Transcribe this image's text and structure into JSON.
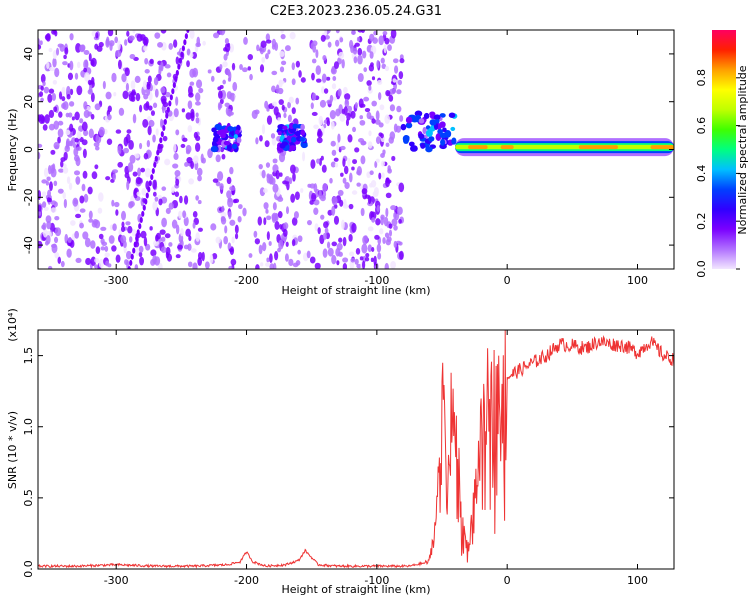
{
  "title": "C2E3.2023.236.05.24.G31",
  "chart_data": [
    {
      "type": "heatmap",
      "xlabel": "Height of straight line (km)",
      "ylabel": "Frequency (Hz)",
      "xlim": [
        -360,
        128
      ],
      "ylim": [
        -50,
        50
      ],
      "xticks": [
        -300,
        -200,
        -100,
        0,
        100
      ],
      "yticks": [
        -40,
        -20,
        0,
        20,
        40
      ],
      "colorbar": {
        "label": "Normalized spectral amplitude",
        "range": [
          0.0,
          1.0
        ],
        "ticks": [
          "0.0",
          "0.2",
          "0.4",
          "0.6",
          "0.8"
        ],
        "colormap": [
          "#f2e6ff",
          "#b070ff",
          "#7a00ff",
          "#3000ff",
          "#0040ff",
          "#00c0ff",
          "#00ff80",
          "#40ff00",
          "#c0ff00",
          "#ffff00",
          "#ffa000",
          "#ff2000",
          "#ff0060"
        ]
      },
      "features": [
        {
          "x": [
            -360,
            -80
          ],
          "y": [
            -50,
            50
          ],
          "amplitude": 0.15,
          "note": "noise"
        },
        {
          "x": [
            -225,
            -205
          ],
          "y": [
            0,
            10
          ],
          "amplitude": 0.3
        },
        {
          "x": [
            -175,
            -155
          ],
          "y": [
            0,
            10
          ],
          "amplitude": 0.3
        },
        {
          "x": [
            -80,
            -40
          ],
          "y": [
            0,
            15
          ],
          "amplitude": 0.3
        },
        {
          "x": [
            -40,
            128
          ],
          "y": [
            0,
            2
          ],
          "amplitude": 0.8
        }
      ]
    },
    {
      "type": "line",
      "xlabel": "Height of straight line (km)",
      "ylabel": "SNR (10 * v/v)",
      "y_multiplier": "(x10⁴)",
      "xlim": [
        -360,
        128
      ],
      "ylim": [
        0,
        1.68
      ],
      "xticks": [
        -300,
        -200,
        -100,
        0,
        100
      ],
      "yticks": [
        "0.0",
        "0.5",
        "1.0",
        "1.5"
      ],
      "series": [
        {
          "color": "#ee3333",
          "x": [
            -360,
            -330,
            -300,
            -270,
            -240,
            -215,
            -205,
            -200,
            -195,
            -185,
            -170,
            -160,
            -155,
            -150,
            -145,
            -130,
            -110,
            -90,
            -75,
            -60,
            -55,
            -52,
            -48,
            -45,
            -42,
            -38,
            -35,
            -30,
            -25,
            -20,
            -15,
            -10,
            -5,
            0,
            10,
            20,
            30,
            40,
            50,
            60,
            70,
            80,
            90,
            100,
            110,
            120,
            128
          ],
          "y": [
            0.02,
            0.02,
            0.03,
            0.02,
            0.02,
            0.03,
            0.05,
            0.12,
            0.05,
            0.02,
            0.03,
            0.06,
            0.13,
            0.08,
            0.03,
            0.02,
            0.02,
            0.02,
            0.02,
            0.05,
            0.3,
            0.95,
            1.15,
            0.6,
            1.25,
            0.8,
            0.3,
            0.15,
            0.5,
            0.9,
            1.15,
            1.2,
            1.3,
            1.35,
            1.4,
            1.45,
            1.5,
            1.58,
            1.57,
            1.55,
            1.6,
            1.58,
            1.57,
            1.52,
            1.6,
            1.5,
            1.47
          ]
        }
      ]
    }
  ]
}
